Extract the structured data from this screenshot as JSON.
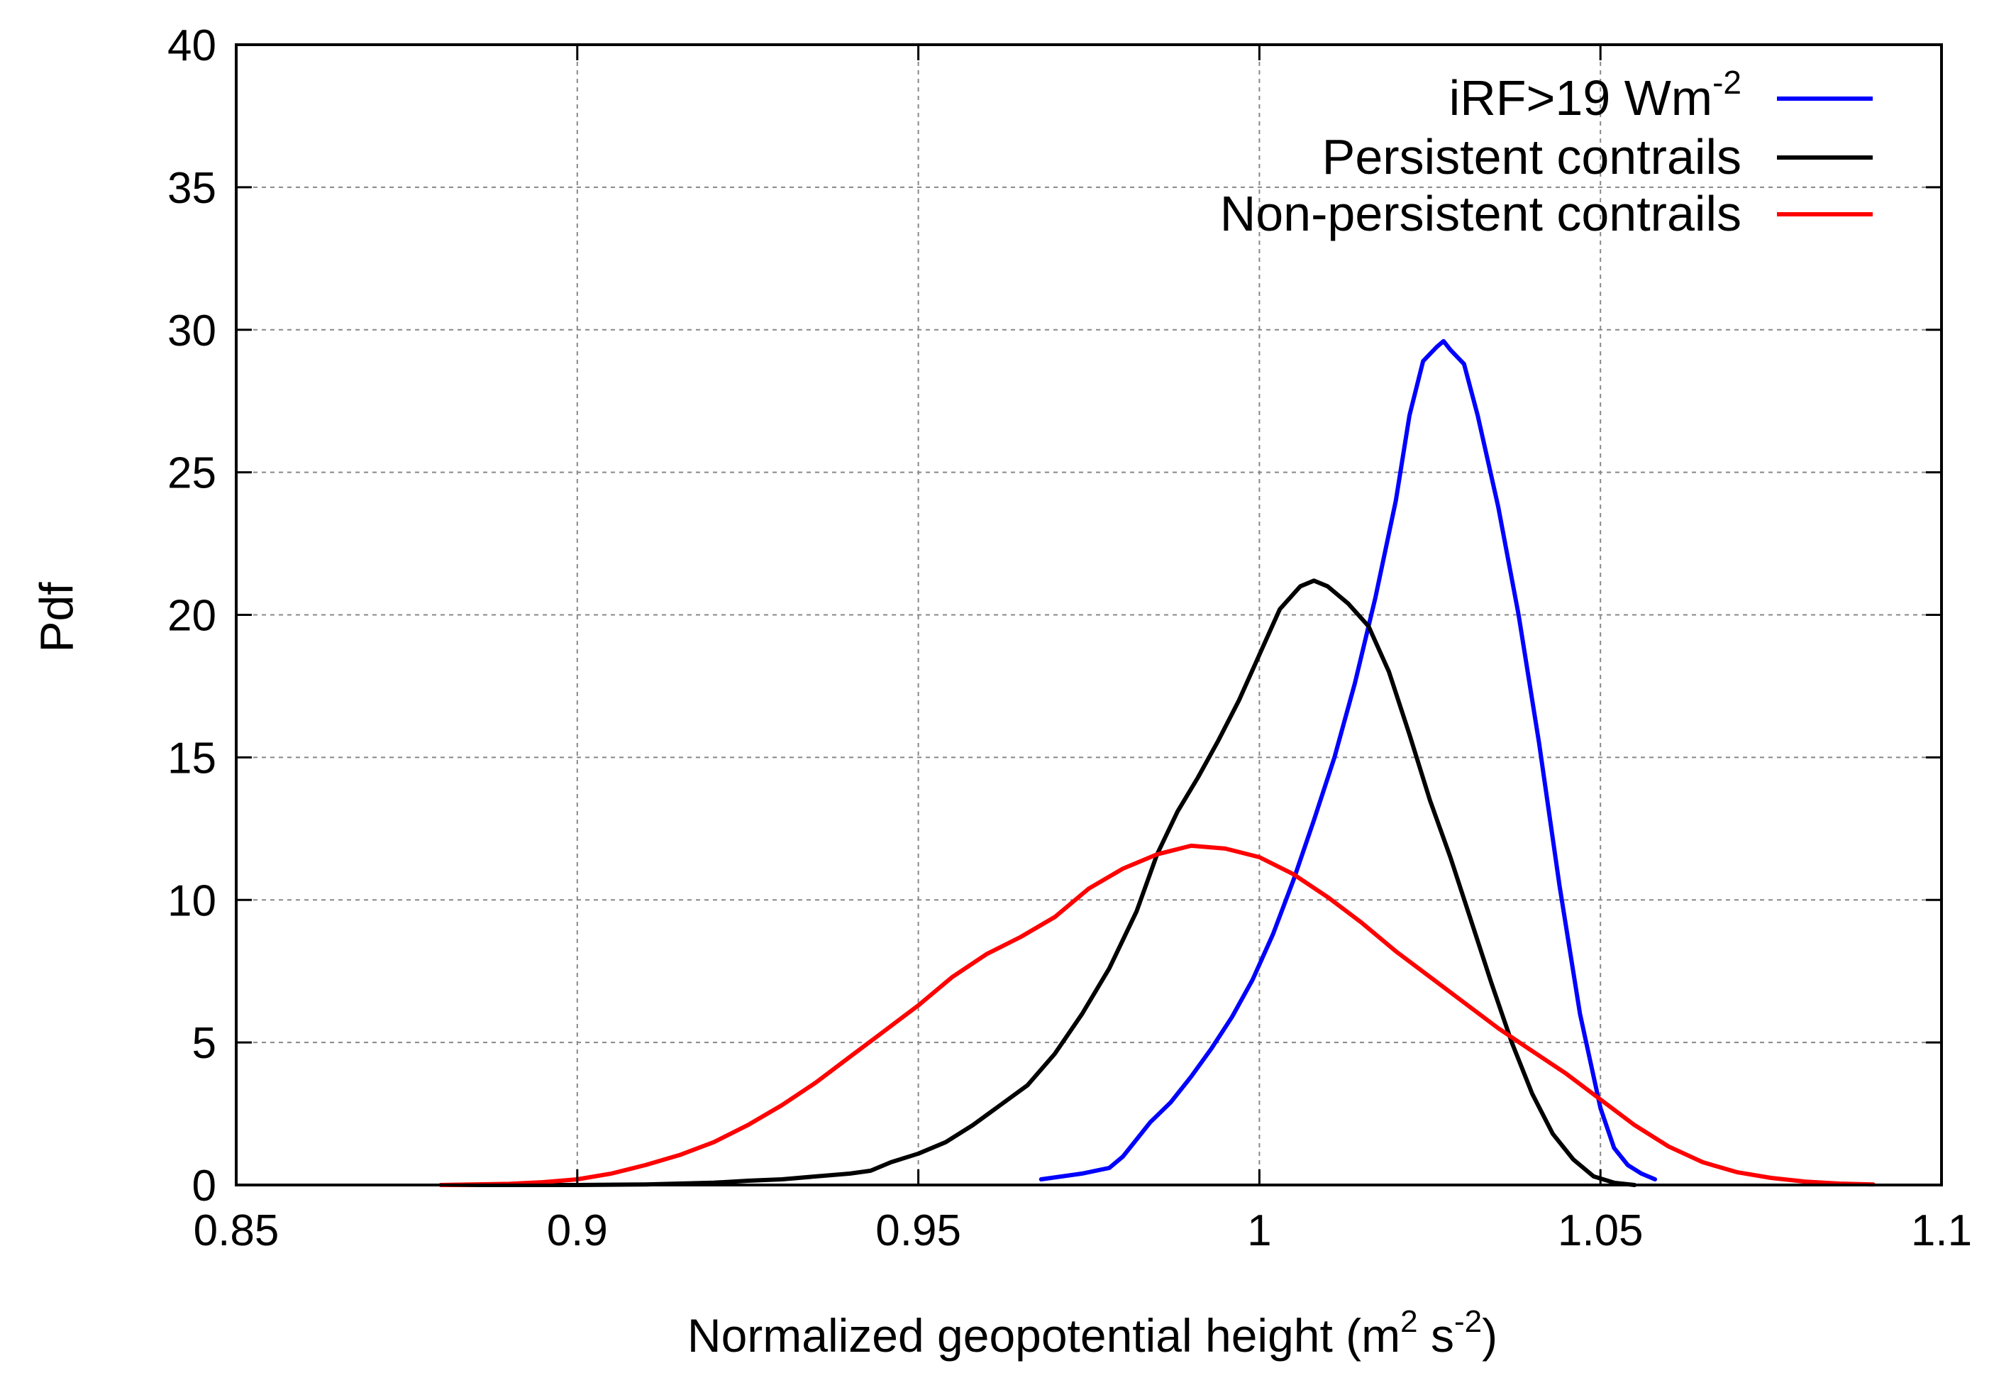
{
  "chart_data": {
    "type": "line",
    "title": "",
    "xlabel": "Normalized geopotential height (m",
    "xlabel_sup1": "2",
    "xlabel_mid": " s",
    "xlabel_sup2": "-2",
    "xlabel_end": ")",
    "ylabel": "Pdf",
    "xlim": [
      0.85,
      1.1
    ],
    "ylim": [
      0,
      40
    ],
    "grid": true,
    "legend_position": "top-right",
    "x_ticks": [
      "0.85",
      "0.9",
      "0.95",
      "1",
      "1.05",
      "1.1"
    ],
    "y_ticks": [
      "0",
      "5",
      "10",
      "15",
      "20",
      "25",
      "30",
      "35",
      "40"
    ],
    "series": [
      {
        "name": "iRF>19 Wm",
        "name_sup": "-2",
        "color": "#0000ff",
        "points": [
          [
            0.968,
            0.2
          ],
          [
            0.974,
            0.4
          ],
          [
            0.978,
            0.6
          ],
          [
            0.98,
            1.0
          ],
          [
            0.982,
            1.6
          ],
          [
            0.984,
            2.2
          ],
          [
            0.987,
            2.9
          ],
          [
            0.99,
            3.8
          ],
          [
            0.993,
            4.8
          ],
          [
            0.996,
            5.9
          ],
          [
            0.999,
            7.2
          ],
          [
            1.002,
            8.8
          ],
          [
            1.005,
            10.7
          ],
          [
            1.008,
            12.8
          ],
          [
            1.011,
            15.0
          ],
          [
            1.014,
            17.6
          ],
          [
            1.017,
            20.6
          ],
          [
            1.02,
            24.0
          ],
          [
            1.022,
            27.0
          ],
          [
            1.024,
            28.9
          ],
          [
            1.026,
            29.4
          ],
          [
            1.027,
            29.6
          ],
          [
            1.028,
            29.3
          ],
          [
            1.03,
            28.8
          ],
          [
            1.032,
            27.0
          ],
          [
            1.035,
            23.8
          ],
          [
            1.038,
            20.0
          ],
          [
            1.041,
            15.5
          ],
          [
            1.044,
            10.5
          ],
          [
            1.047,
            6.0
          ],
          [
            1.05,
            2.7
          ],
          [
            1.052,
            1.3
          ],
          [
            1.054,
            0.7
          ],
          [
            1.056,
            0.4
          ],
          [
            1.058,
            0.2
          ]
        ]
      },
      {
        "name": "Persistent contrails",
        "color": "#000000",
        "points": [
          [
            0.88,
            0.0
          ],
          [
            0.9,
            0.0
          ],
          [
            0.91,
            0.02
          ],
          [
            0.92,
            0.08
          ],
          [
            0.925,
            0.15
          ],
          [
            0.93,
            0.2
          ],
          [
            0.935,
            0.3
          ],
          [
            0.94,
            0.4
          ],
          [
            0.943,
            0.5
          ],
          [
            0.946,
            0.8
          ],
          [
            0.95,
            1.1
          ],
          [
            0.954,
            1.5
          ],
          [
            0.958,
            2.1
          ],
          [
            0.962,
            2.8
          ],
          [
            0.966,
            3.5
          ],
          [
            0.97,
            4.6
          ],
          [
            0.974,
            6.0
          ],
          [
            0.978,
            7.6
          ],
          [
            0.982,
            9.6
          ],
          [
            0.985,
            11.6
          ],
          [
            0.988,
            13.1
          ],
          [
            0.991,
            14.3
          ],
          [
            0.994,
            15.6
          ],
          [
            0.997,
            17.0
          ],
          [
            1.0,
            18.6
          ],
          [
            1.003,
            20.2
          ],
          [
            1.006,
            21.0
          ],
          [
            1.008,
            21.2
          ],
          [
            1.01,
            21.0
          ],
          [
            1.013,
            20.4
          ],
          [
            1.016,
            19.6
          ],
          [
            1.019,
            18.0
          ],
          [
            1.022,
            15.8
          ],
          [
            1.025,
            13.5
          ],
          [
            1.028,
            11.5
          ],
          [
            1.031,
            9.3
          ],
          [
            1.034,
            7.1
          ],
          [
            1.037,
            5.0
          ],
          [
            1.04,
            3.2
          ],
          [
            1.043,
            1.8
          ],
          [
            1.046,
            0.9
          ],
          [
            1.049,
            0.3
          ],
          [
            1.052,
            0.08
          ],
          [
            1.055,
            0.0
          ]
        ]
      },
      {
        "name": "Non-persistent contrails",
        "color": "#ff0000",
        "points": [
          [
            0.88,
            0.0
          ],
          [
            0.89,
            0.04
          ],
          [
            0.895,
            0.1
          ],
          [
            0.9,
            0.2
          ],
          [
            0.905,
            0.4
          ],
          [
            0.91,
            0.7
          ],
          [
            0.915,
            1.05
          ],
          [
            0.92,
            1.5
          ],
          [
            0.925,
            2.1
          ],
          [
            0.93,
            2.8
          ],
          [
            0.935,
            3.6
          ],
          [
            0.94,
            4.5
          ],
          [
            0.945,
            5.4
          ],
          [
            0.95,
            6.3
          ],
          [
            0.955,
            7.3
          ],
          [
            0.96,
            8.1
          ],
          [
            0.965,
            8.7
          ],
          [
            0.97,
            9.4
          ],
          [
            0.975,
            10.4
          ],
          [
            0.98,
            11.1
          ],
          [
            0.985,
            11.6
          ],
          [
            0.99,
            11.9
          ],
          [
            0.995,
            11.8
          ],
          [
            1.0,
            11.5
          ],
          [
            1.005,
            10.9
          ],
          [
            1.01,
            10.1
          ],
          [
            1.015,
            9.2
          ],
          [
            1.02,
            8.2
          ],
          [
            1.025,
            7.3
          ],
          [
            1.03,
            6.4
          ],
          [
            1.035,
            5.5
          ],
          [
            1.04,
            4.7
          ],
          [
            1.045,
            3.9
          ],
          [
            1.05,
            3.0
          ],
          [
            1.055,
            2.1
          ],
          [
            1.06,
            1.35
          ],
          [
            1.065,
            0.8
          ],
          [
            1.07,
            0.45
          ],
          [
            1.075,
            0.25
          ],
          [
            1.08,
            0.12
          ],
          [
            1.085,
            0.05
          ],
          [
            1.09,
            0.02
          ]
        ]
      }
    ]
  }
}
